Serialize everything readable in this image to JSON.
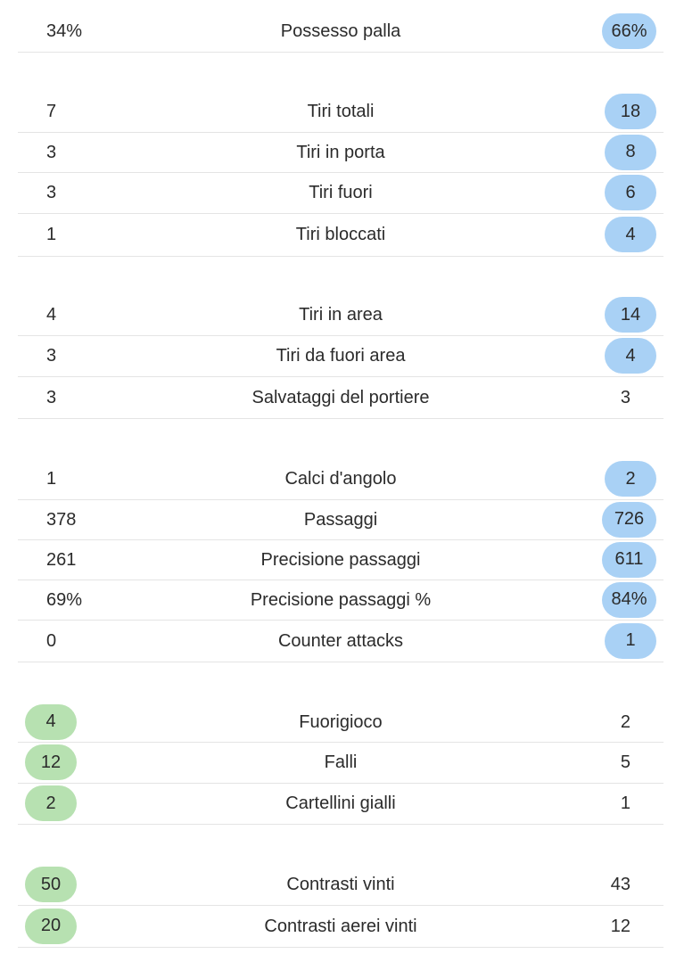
{
  "highlight_colors": {
    "home": "#b7e1b1",
    "away": "#a9d1f5"
  },
  "stats": [
    {
      "label": "Possesso palla",
      "home": "34%",
      "away": "66%",
      "highlight": "away"
    },
    {
      "label": "Tiri totali",
      "home": "7",
      "away": "18",
      "highlight": "away"
    },
    {
      "label": "Tiri in porta",
      "home": "3",
      "away": "8",
      "highlight": "away"
    },
    {
      "label": "Tiri fuori",
      "home": "3",
      "away": "6",
      "highlight": "away"
    },
    {
      "label": "Tiri bloccati",
      "home": "1",
      "away": "4",
      "highlight": "away"
    },
    {
      "label": "Tiri in area",
      "home": "4",
      "away": "14",
      "highlight": "away"
    },
    {
      "label": "Tiri da fuori area",
      "home": "3",
      "away": "4",
      "highlight": "away"
    },
    {
      "label": "Salvataggi del portiere",
      "home": "3",
      "away": "3",
      "highlight": "none"
    },
    {
      "label": "Calci d'angolo",
      "home": "1",
      "away": "2",
      "highlight": "away"
    },
    {
      "label": "Passaggi",
      "home": "378",
      "away": "726",
      "highlight": "away"
    },
    {
      "label": "Precisione passaggi",
      "home": "261",
      "away": "611",
      "highlight": "away"
    },
    {
      "label": "Precisione passaggi %",
      "home": "69%",
      "away": "84%",
      "highlight": "away"
    },
    {
      "label": "Counter attacks",
      "home": "0",
      "away": "1",
      "highlight": "away"
    },
    {
      "label": "Fuorigioco",
      "home": "4",
      "away": "2",
      "highlight": "home"
    },
    {
      "label": "Falli",
      "home": "12",
      "away": "5",
      "highlight": "home"
    },
    {
      "label": "Cartellini gialli",
      "home": "2",
      "away": "1",
      "highlight": "home"
    },
    {
      "label": "Contrasti vinti",
      "home": "50",
      "away": "43",
      "highlight": "home"
    },
    {
      "label": "Contrasti aerei vinti",
      "home": "20",
      "away": "12",
      "highlight": "home"
    }
  ]
}
